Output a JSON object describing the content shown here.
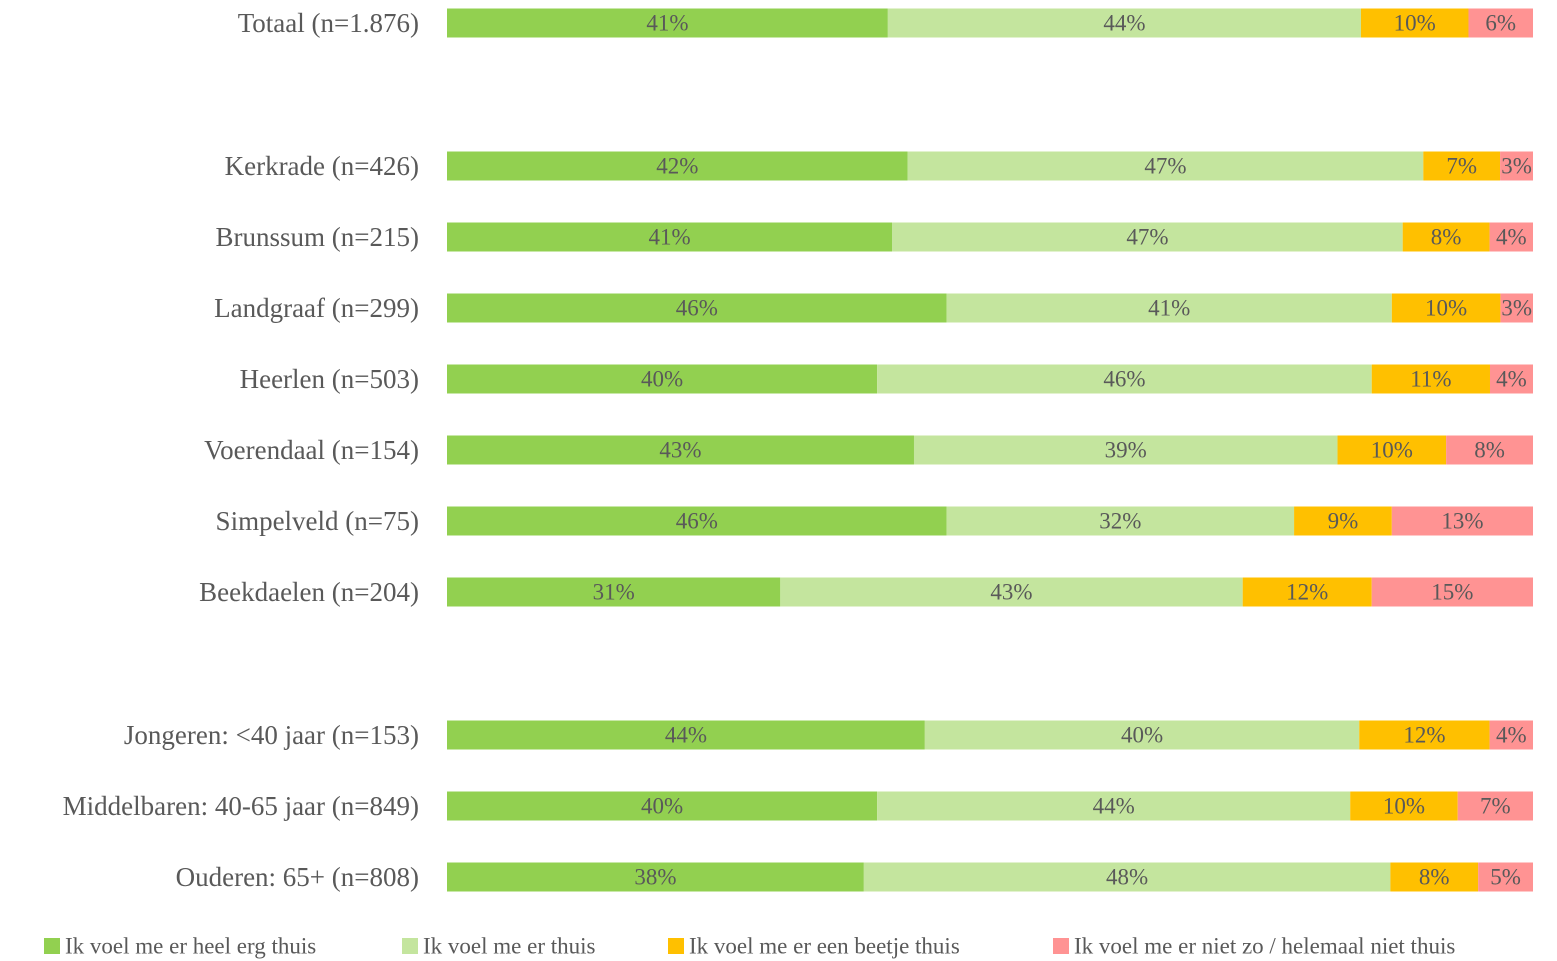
{
  "chart_data": {
    "type": "bar",
    "orientation": "horizontal",
    "stacked": "100%",
    "title": "",
    "xlabel": "",
    "ylabel": "",
    "grid": false,
    "legend_position": "bottom",
    "categories": [
      "Totaal (n=1.876)",
      "Kerkrade (n=426)",
      "Brunssum (n=215)",
      "Landgraaf (n=299)",
      "Heerlen (n=503)",
      "Voerendaal (n=154)",
      "Simpelveld (n=75)",
      "Beekdaelen (n=204)",
      "Jongeren: <40 jaar (n=153)",
      "Middelbaren: 40-65 jaar (n=849)",
      "Ouderen: 65+ (n=808)"
    ],
    "series": [
      {
        "name": "Ik voel me er heel erg thuis",
        "color": "#92d050",
        "values": [
          41,
          42,
          41,
          46,
          40,
          43,
          46,
          31,
          44,
          40,
          38
        ]
      },
      {
        "name": "Ik voel me er thuis",
        "color": "#c4e59e",
        "values": [
          44,
          47,
          47,
          41,
          46,
          39,
          32,
          43,
          40,
          44,
          48
        ]
      },
      {
        "name": "Ik voel me er een beetje thuis",
        "color": "#ffc000",
        "values": [
          10,
          7,
          8,
          10,
          11,
          10,
          9,
          12,
          12,
          10,
          8
        ]
      },
      {
        "name": "Ik voel me er niet zo / helemaal niet thuis",
        "color": "#ff9393",
        "values": [
          6,
          3,
          4,
          3,
          4,
          8,
          13,
          15,
          4,
          7,
          5
        ]
      }
    ],
    "value_suffix": "%"
  }
}
